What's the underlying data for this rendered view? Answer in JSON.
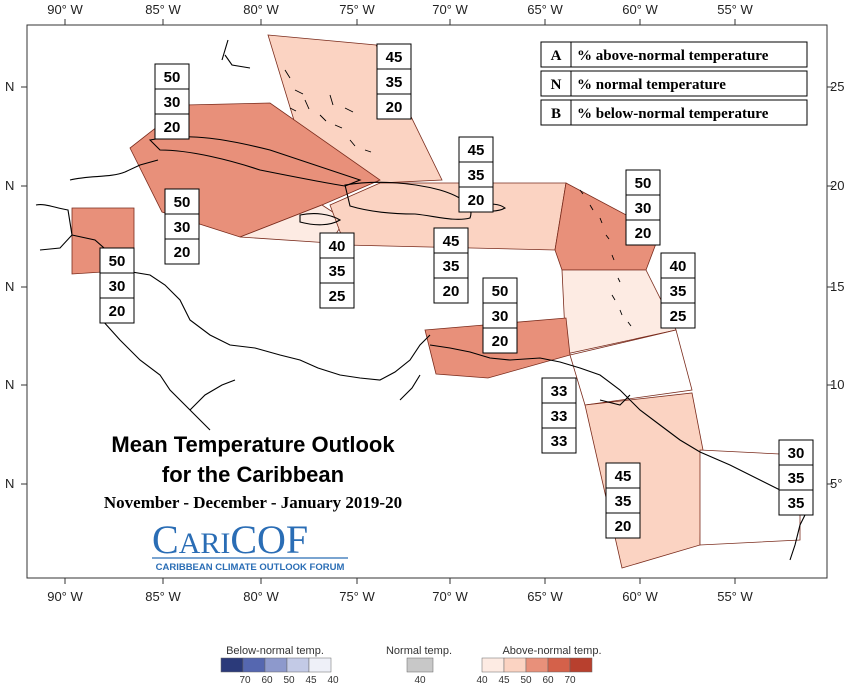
{
  "map": {
    "title_line1": "Mean Temperature Outlook",
    "title_line2": "for the Caribbean",
    "period": "November - December - January 2019-20",
    "logo": {
      "name_part1": "C",
      "name_part2": "ARI",
      "name_part3": "COF",
      "tagline": "CARIBBEAN CLIMATE OUTLOOK FORUM"
    },
    "lon_ticks": [
      "90° W",
      "85° W",
      "80° W",
      "75° W",
      "70° W",
      "65° W",
      "60° W",
      "55° W"
    ],
    "lat_ticks_left": [
      "N",
      "N",
      "N",
      "N",
      "N"
    ],
    "lat_ticks_right": [
      "25",
      "20",
      "15",
      "10",
      "5°"
    ],
    "key": [
      {
        "letter": "A",
        "text": "% above-normal temperature"
      },
      {
        "letter": "N",
        "text": "% normal temperature"
      },
      {
        "letter": "B",
        "text": "% below-normal temperature"
      }
    ],
    "regions": [
      {
        "id": "bahamas",
        "above": "45",
        "normal": "35",
        "below": "20",
        "color": "#fbd3c2"
      },
      {
        "id": "cuba",
        "above": "50",
        "normal": "30",
        "below": "20",
        "color": "#e8907a"
      },
      {
        "id": "cayman-jamaica",
        "above": "50",
        "normal": "30",
        "below": "20",
        "color": "#e8907a"
      },
      {
        "id": "belize",
        "above": "50",
        "normal": "30",
        "below": "20",
        "color": "#e8907a"
      },
      {
        "id": "haiti-south",
        "above": "40",
        "normal": "35",
        "below": "25",
        "color": "#fdebe3"
      },
      {
        "id": "hispaniola-pr",
        "above": "45",
        "normal": "35",
        "below": "20",
        "color": "#fbd3c2"
      },
      {
        "id": "north-hispaniola",
        "above": "45",
        "normal": "35",
        "below": "20",
        "color": "#fbd3c2"
      },
      {
        "id": "leeward",
        "above": "50",
        "normal": "30",
        "below": "20",
        "color": "#e8907a"
      },
      {
        "id": "windward",
        "above": "40",
        "normal": "35",
        "below": "25",
        "color": "#fdebe3"
      },
      {
        "id": "abc",
        "above": "50",
        "normal": "30",
        "below": "20",
        "color": "#e8907a"
      },
      {
        "id": "trinidad",
        "above": "33",
        "normal": "33",
        "below": "33",
        "color": "#ffffff"
      },
      {
        "id": "guianas",
        "above": "45",
        "normal": "35",
        "below": "20",
        "color": "#fbd3c2"
      },
      {
        "id": "french-guiana",
        "above": "30",
        "normal": "35",
        "below": "35",
        "color": "#ffffff"
      }
    ],
    "legend": {
      "below_label": "Below-normal temp.",
      "normal_label": "Normal temp.",
      "above_label": "Above-normal temp.",
      "below_ticks": [
        "70",
        "60",
        "50",
        "45",
        "40"
      ],
      "normal_ticks": [
        "40"
      ],
      "above_ticks": [
        "40",
        "45",
        "50",
        "60",
        "70"
      ],
      "below_colors": [
        "#2b3a7a",
        "#5567b0",
        "#8d99cc",
        "#c3cae6",
        "#eef0f8"
      ],
      "normal_color": "#c8c8c8",
      "above_colors": [
        "#fdebe3",
        "#fbd3c2",
        "#e8907a",
        "#d4614a",
        "#b8402e"
      ]
    }
  }
}
